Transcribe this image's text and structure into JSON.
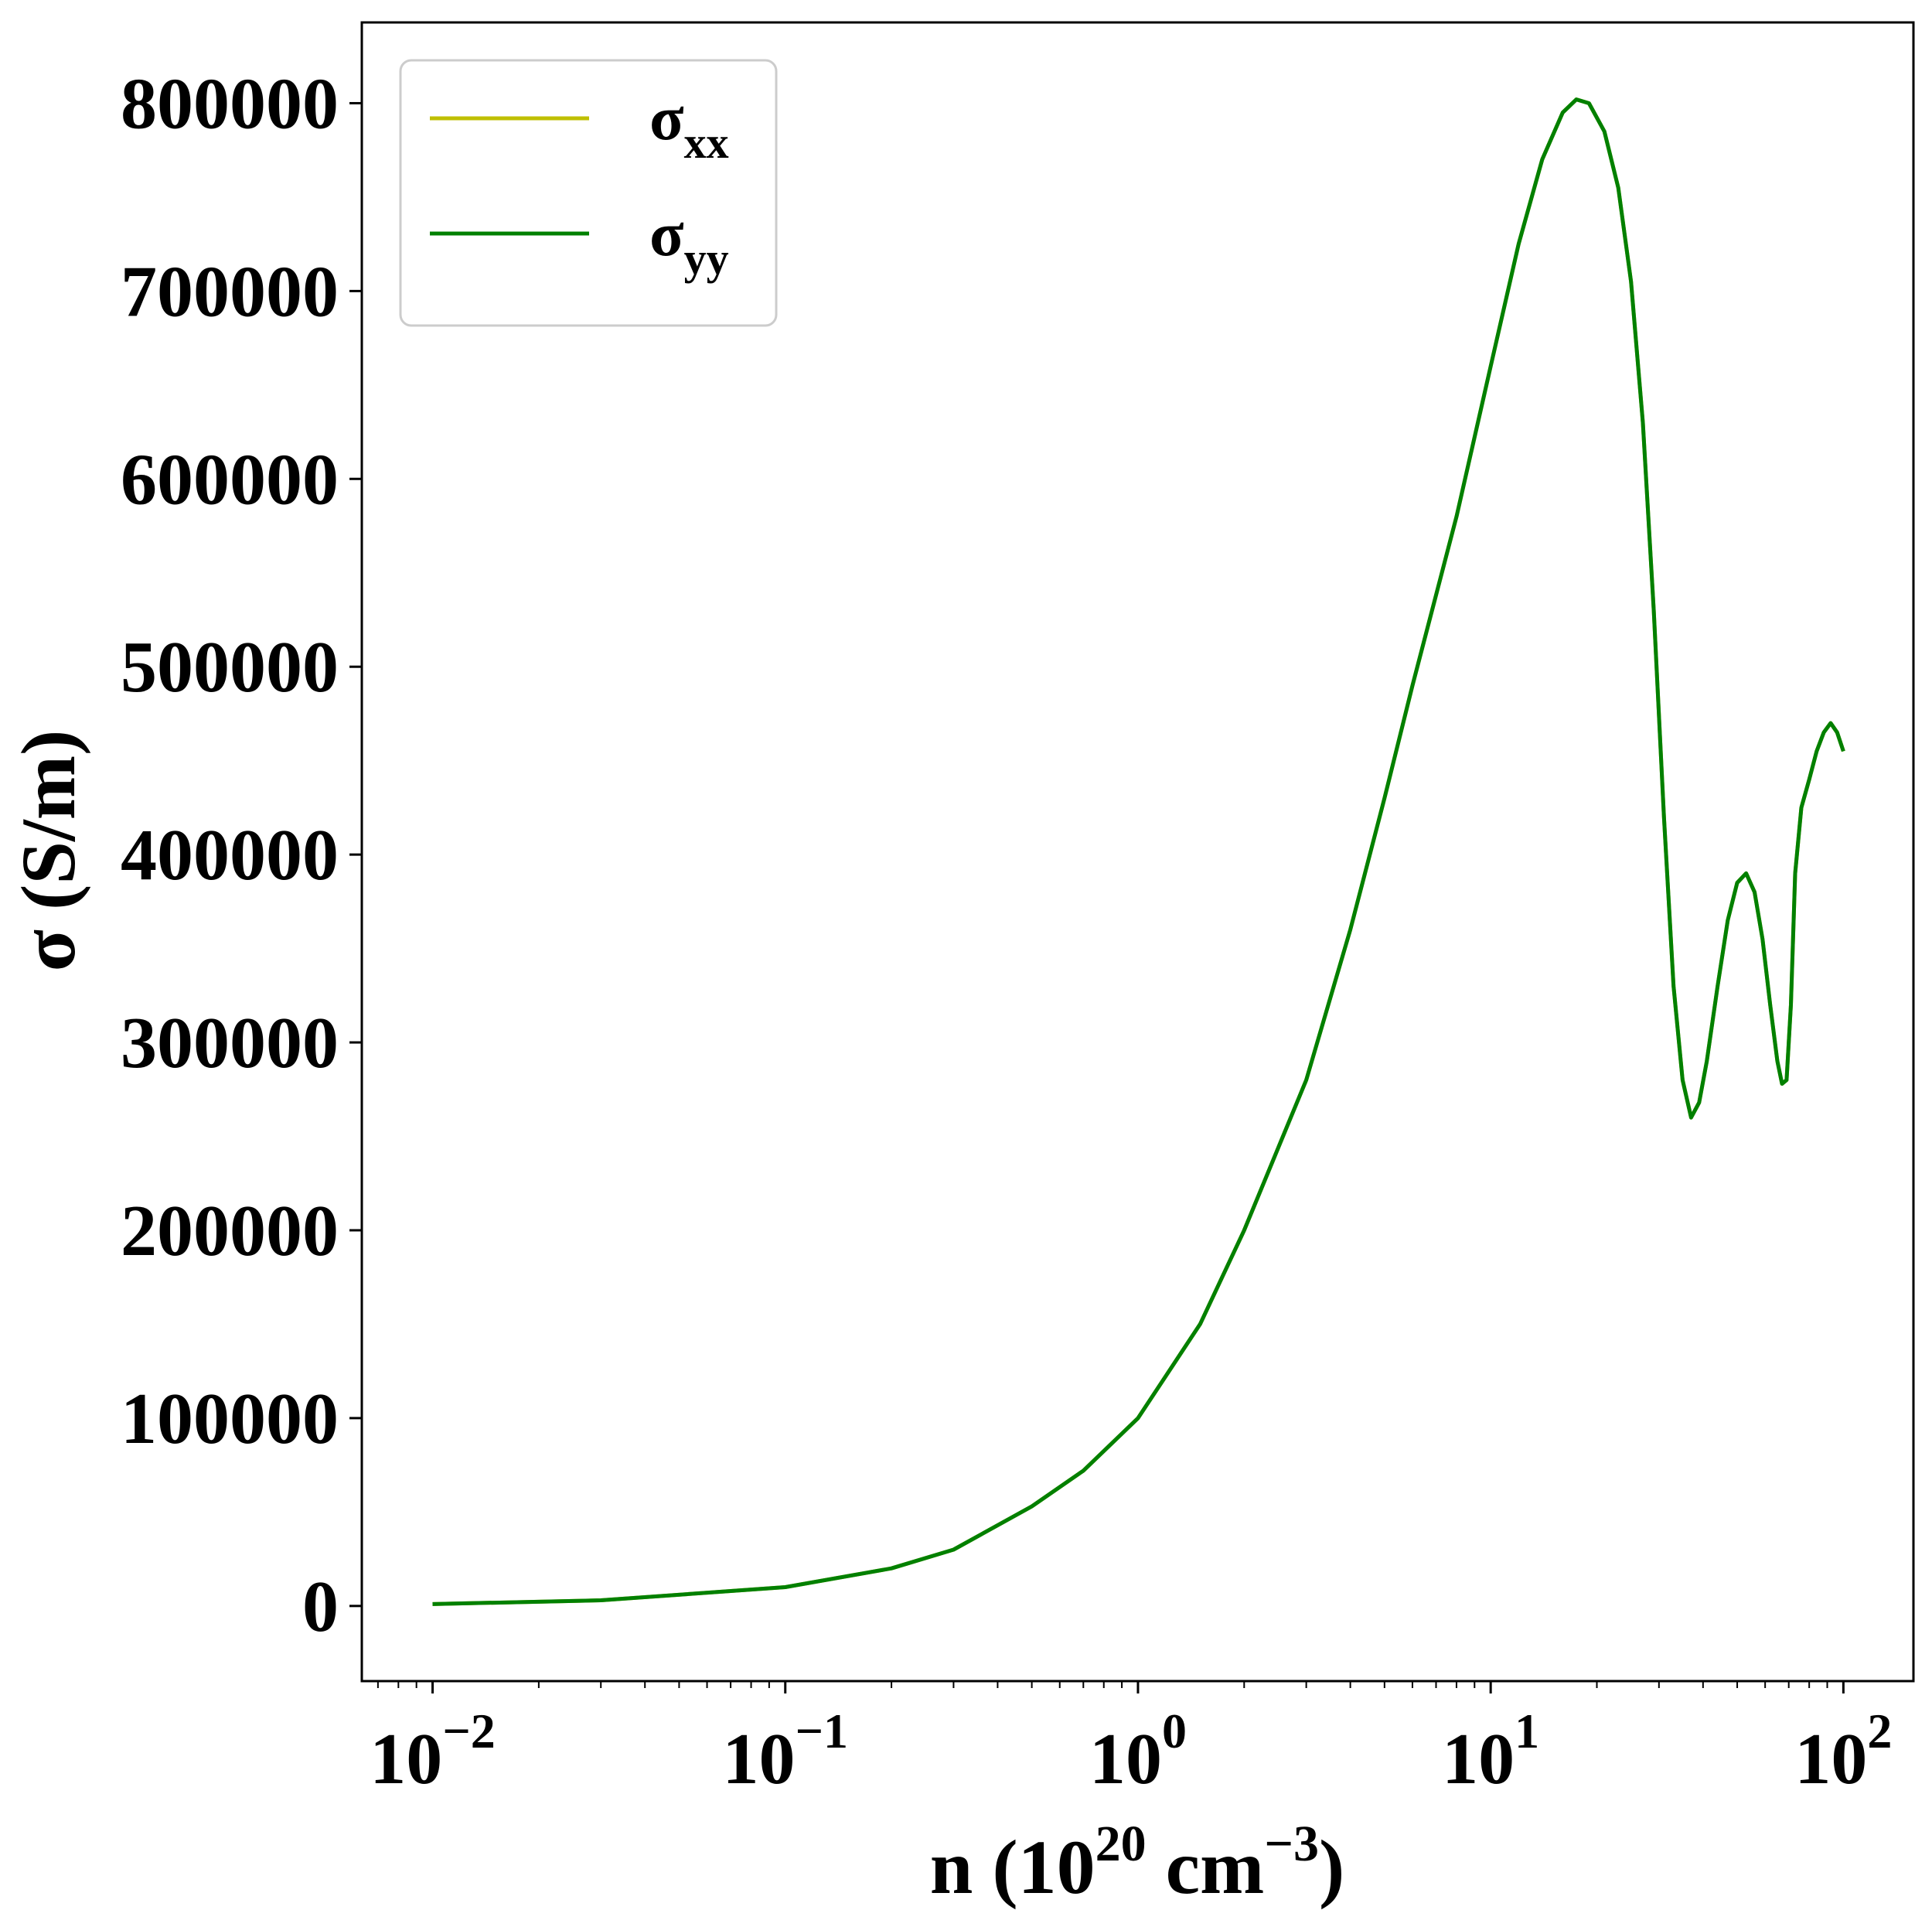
{
  "chart_data": {
    "type": "line",
    "xscale": "log",
    "xlabel": {
      "prefix": "n (10",
      "exp1": "20",
      "mid": " cm",
      "exp2": "−3",
      "suffix": ")"
    },
    "ylabel": "σ (S/m)",
    "xlim": [
      0.0063,
      158
    ],
    "ylim": [
      -40000,
      843000
    ],
    "x_ticks": [
      {
        "value": 0.01,
        "base": "10",
        "exp": "−2"
      },
      {
        "value": 0.1,
        "base": "10",
        "exp": "−1"
      },
      {
        "value": 1,
        "base": "10",
        "exp": "0"
      },
      {
        "value": 10,
        "base": "10",
        "exp": "1"
      },
      {
        "value": 100,
        "base": "10",
        "exp": "2"
      }
    ],
    "y_ticks": [
      {
        "value": 0,
        "label": "0"
      },
      {
        "value": 100000,
        "label": "100000"
      },
      {
        "value": 200000,
        "label": "200000"
      },
      {
        "value": 300000,
        "label": "300000"
      },
      {
        "value": 400000,
        "label": "400000"
      },
      {
        "value": 500000,
        "label": "500000"
      },
      {
        "value": 600000,
        "label": "600000"
      },
      {
        "value": 700000,
        "label": "700000"
      },
      {
        "value": 800000,
        "label": "800000"
      }
    ],
    "grid": false,
    "legend_position": "top-left",
    "series": [
      {
        "name": "σ",
        "sub": "xx",
        "color": "#bfbf00",
        "x": [
          0.01,
          0.03,
          0.1,
          0.2,
          0.3,
          0.5,
          0.7,
          1.0,
          1.5,
          2.0,
          3.0,
          4.0,
          5.0,
          6.0,
          8.0,
          10.0,
          12.0,
          14.0,
          16.0,
          17.5,
          19.0,
          21.0,
          23.0,
          25.0,
          27.0,
          29.0,
          31.0,
          33.0,
          35.0,
          37.0,
          39.0,
          41.0,
          44.0,
          47.0,
          50.0,
          53.0,
          56.0,
          59.0,
          62.0,
          65.0,
          67.0,
          69.0,
          71.0,
          73.0,
          76.0,
          80.0,
          84.0,
          88.0,
          92.0,
          96.0,
          100.0
        ],
        "y": [
          1000,
          3000,
          10000,
          20000,
          30000,
          53000,
          72000,
          100000,
          150000,
          200000,
          280000,
          360000,
          430000,
          490000,
          580000,
          660000,
          725000,
          770000,
          795000,
          802000,
          800000,
          785000,
          755000,
          705000,
          630000,
          530000,
          420000,
          330000,
          280000,
          260000,
          268000,
          290000,
          330000,
          365000,
          385000,
          390000,
          380000,
          355000,
          320000,
          290000,
          278000,
          280000,
          320000,
          390000,
          425000,
          440000,
          455000,
          465000,
          470000,
          465000,
          455000
        ]
      },
      {
        "name": "σ",
        "sub": "yy",
        "color": "#008000",
        "x": [
          0.01,
          0.03,
          0.1,
          0.2,
          0.3,
          0.5,
          0.7,
          1.0,
          1.5,
          2.0,
          3.0,
          4.0,
          5.0,
          6.0,
          8.0,
          10.0,
          12.0,
          14.0,
          16.0,
          17.5,
          19.0,
          21.0,
          23.0,
          25.0,
          27.0,
          29.0,
          31.0,
          33.0,
          35.0,
          37.0,
          39.0,
          41.0,
          44.0,
          47.0,
          50.0,
          53.0,
          56.0,
          59.0,
          62.0,
          65.0,
          67.0,
          69.0,
          71.0,
          73.0,
          76.0,
          80.0,
          84.0,
          88.0,
          92.0,
          96.0,
          100.0
        ],
        "y": [
          1000,
          3000,
          10000,
          20000,
          30000,
          53000,
          72000,
          100000,
          150000,
          200000,
          280000,
          360000,
          430000,
          490000,
          580000,
          660000,
          725000,
          770000,
          795000,
          802000,
          800000,
          785000,
          755000,
          705000,
          630000,
          530000,
          420000,
          330000,
          280000,
          260000,
          268000,
          290000,
          330000,
          365000,
          385000,
          390000,
          380000,
          355000,
          320000,
          290000,
          278000,
          280000,
          320000,
          390000,
          425000,
          440000,
          455000,
          465000,
          470000,
          465000,
          455000
        ]
      }
    ]
  }
}
